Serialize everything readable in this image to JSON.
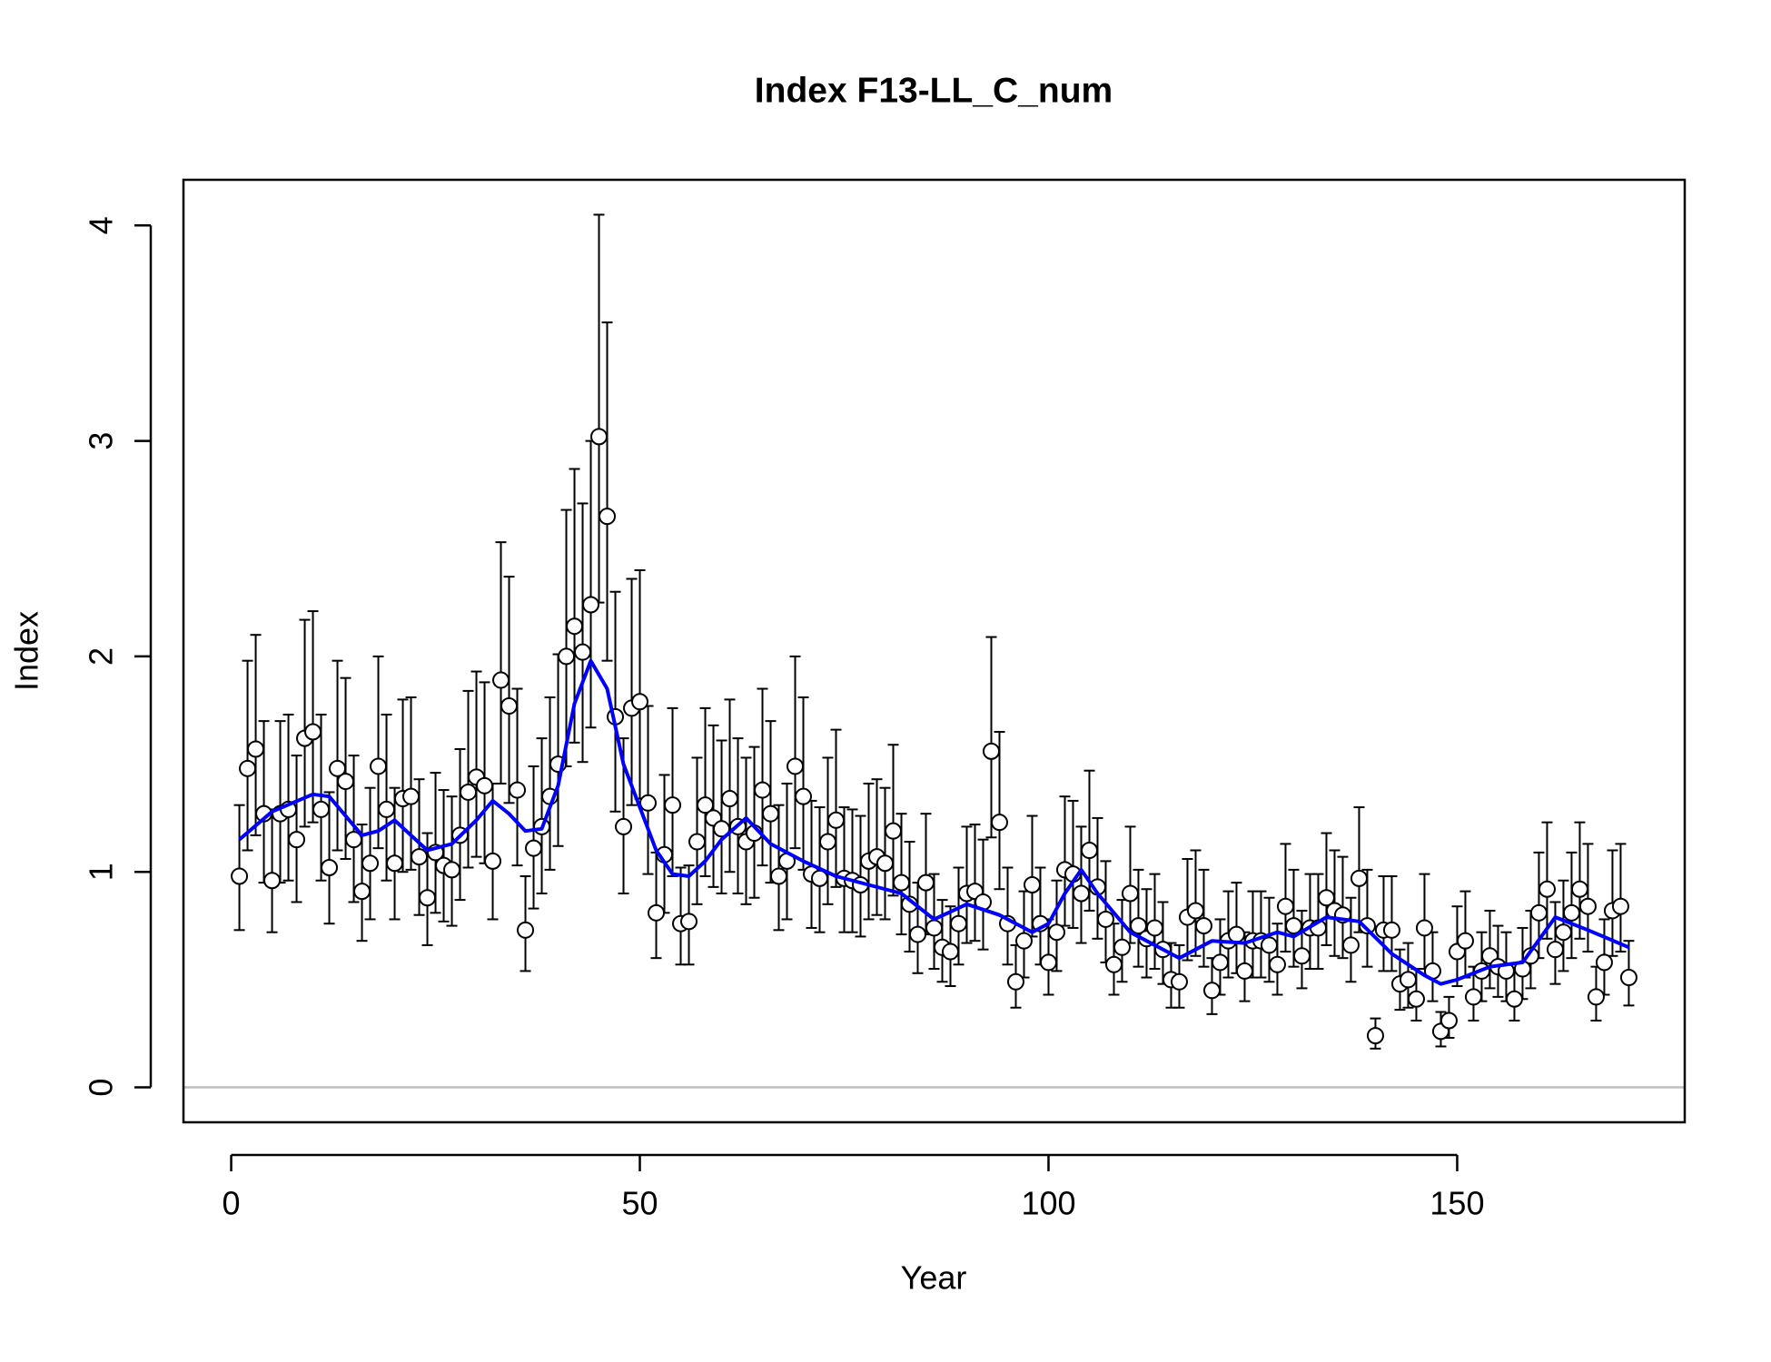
{
  "chart_data": {
    "type": "errorbar",
    "title": "Index F13-LL_C_num",
    "x_label": "Year",
    "y_label": "Index",
    "xlim": [
      -5.84,
      177.84
    ],
    "ylim": [
      -0.162,
      4.212
    ],
    "xticks": [
      0,
      50,
      100,
      150
    ],
    "yticks": [
      0,
      1,
      2,
      3,
      4
    ],
    "hline": {
      "value": 0,
      "color": "#bebebe"
    },
    "point_color": "#000000",
    "x": [
      1,
      2,
      3,
      4,
      5,
      6,
      7,
      8,
      9,
      10,
      11,
      12,
      13,
      14,
      15,
      16,
      17,
      18,
      19,
      20,
      21,
      22,
      23,
      24,
      25,
      26,
      27,
      28,
      29,
      30,
      31,
      32,
      33,
      34,
      35,
      36,
      37,
      38,
      39,
      40,
      41,
      42,
      43,
      44,
      45,
      46,
      47,
      48,
      49,
      50,
      51,
      52,
      53,
      54,
      55,
      56,
      57,
      58,
      59,
      60,
      61,
      62,
      63,
      64,
      65,
      66,
      67,
      68,
      69,
      70,
      71,
      72,
      73,
      74,
      75,
      76,
      77,
      78,
      79,
      80,
      81,
      82,
      83,
      84,
      85,
      86,
      87,
      88,
      89,
      90,
      91,
      92,
      93,
      94,
      95,
      96,
      97,
      98,
      99,
      100,
      101,
      102,
      103,
      104,
      105,
      106,
      107,
      108,
      109,
      110,
      111,
      112,
      113,
      114,
      115,
      116,
      117,
      118,
      119,
      120,
      121,
      122,
      123,
      124,
      125,
      126,
      127,
      128,
      129,
      130,
      131,
      132,
      133,
      134,
      135,
      136,
      137,
      138,
      139,
      140,
      141,
      142,
      143,
      144,
      145,
      146,
      147,
      148,
      149,
      150,
      151,
      152,
      153,
      154,
      155,
      156,
      157,
      158,
      159,
      160,
      161,
      162,
      163,
      164,
      165,
      166,
      167,
      168,
      169,
      170,
      171
    ],
    "values": [
      0.98,
      1.48,
      1.57,
      1.27,
      0.96,
      1.27,
      1.29,
      1.15,
      1.62,
      1.65,
      1.29,
      1.02,
      1.48,
      1.42,
      1.15,
      0.91,
      1.04,
      1.49,
      1.29,
      1.04,
      1.34,
      1.35,
      1.07,
      0.88,
      1.09,
      1.03,
      1.01,
      1.17,
      1.37,
      1.44,
      1.4,
      1.05,
      1.89,
      1.77,
      1.38,
      0.73,
      1.11,
      1.21,
      1.35,
      1.5,
      2.0,
      2.14,
      2.02,
      2.24,
      3.02,
      2.65,
      1.72,
      1.21,
      1.76,
      1.79,
      1.32,
      0.81,
      1.08,
      1.31,
      0.76,
      0.77,
      1.14,
      1.31,
      1.25,
      1.2,
      1.34,
      1.21,
      1.14,
      1.18,
      1.38,
      1.27,
      0.98,
      1.05,
      1.49,
      1.35,
      0.99,
      0.97,
      1.14,
      1.24,
      0.97,
      0.96,
      0.94,
      1.05,
      1.07,
      1.04,
      1.19,
      0.95,
      0.85,
      0.71,
      0.95,
      0.74,
      0.65,
      0.63,
      0.76,
      0.9,
      0.91,
      0.86,
      1.56,
      1.23,
      0.76,
      0.49,
      0.68,
      0.94,
      0.76,
      0.58,
      0.72,
      1.01,
      0.99,
      0.9,
      1.1,
      0.93,
      0.78,
      0.57,
      0.65,
      0.9,
      0.75,
      0.69,
      0.74,
      0.64,
      0.5,
      0.49,
      0.79,
      0.82,
      0.75,
      0.45,
      0.58,
      0.68,
      0.71,
      0.54,
      0.68,
      0.68,
      0.66,
      0.57,
      0.84,
      0.75,
      0.61,
      0.74,
      0.74,
      0.88,
      0.82,
      0.8,
      0.66,
      0.97,
      0.75,
      0.24,
      0.73,
      0.73,
      0.48,
      0.5,
      0.41,
      0.74,
      0.54,
      0.26,
      0.31,
      0.63,
      0.68,
      0.42,
      0.54,
      0.61,
      0.56,
      0.54,
      0.41,
      0.55,
      0.61,
      0.81,
      0.92,
      0.64,
      0.72,
      0.81,
      0.92,
      0.84,
      0.42,
      0.58,
      0.82,
      0.84,
      0.51
    ],
    "lower": [
      0.73,
      1.1,
      1.17,
      0.95,
      0.72,
      0.95,
      0.96,
      0.86,
      1.21,
      1.23,
      0.96,
      0.76,
      1.1,
      1.06,
      0.86,
      0.68,
      0.78,
      1.11,
      0.96,
      0.78,
      1.0,
      1.01,
      0.8,
      0.66,
      0.81,
      0.77,
      0.75,
      0.87,
      1.02,
      1.07,
      1.04,
      0.78,
      1.41,
      1.32,
      1.03,
      0.54,
      0.83,
      0.9,
      1.01,
      1.12,
      1.49,
      1.6,
      1.51,
      1.67,
      2.25,
      1.98,
      1.28,
      0.9,
      1.31,
      1.34,
      0.99,
      0.6,
      0.81,
      0.98,
      0.57,
      0.57,
      0.85,
      0.98,
      0.93,
      0.9,
      1.0,
      0.9,
      0.85,
      0.88,
      1.03,
      0.95,
      0.73,
      0.78,
      1.11,
      1.01,
      0.74,
      0.72,
      0.85,
      0.93,
      0.72,
      0.72,
      0.7,
      0.78,
      0.8,
      0.78,
      0.89,
      0.71,
      0.63,
      0.53,
      0.71,
      0.55,
      0.49,
      0.47,
      0.57,
      0.67,
      0.68,
      0.64,
      1.16,
      0.92,
      0.57,
      0.37,
      0.51,
      0.7,
      0.57,
      0.43,
      0.54,
      0.75,
      0.74,
      0.67,
      0.82,
      0.69,
      0.58,
      0.43,
      0.49,
      0.67,
      0.56,
      0.51,
      0.55,
      0.48,
      0.37,
      0.37,
      0.59,
      0.61,
      0.56,
      0.34,
      0.43,
      0.51,
      0.53,
      0.4,
      0.51,
      0.51,
      0.49,
      0.43,
      0.63,
      0.56,
      0.46,
      0.55,
      0.55,
      0.66,
      0.61,
      0.6,
      0.49,
      0.72,
      0.56,
      0.18,
      0.54,
      0.54,
      0.36,
      0.37,
      0.31,
      0.55,
      0.4,
      0.19,
      0.23,
      0.47,
      0.51,
      0.31,
      0.4,
      0.46,
      0.42,
      0.4,
      0.31,
      0.41,
      0.46,
      0.6,
      0.69,
      0.48,
      0.54,
      0.6,
      0.69,
      0.63,
      0.31,
      0.43,
      0.61,
      0.63,
      0.38
    ],
    "upper": [
      1.31,
      1.98,
      2.1,
      1.7,
      1.29,
      1.7,
      1.73,
      1.54,
      2.17,
      2.21,
      1.73,
      1.37,
      1.98,
      1.9,
      1.54,
      1.22,
      1.39,
      2.0,
      1.73,
      1.39,
      1.8,
      1.81,
      1.43,
      1.18,
      1.46,
      1.38,
      1.35,
      1.57,
      1.84,
      1.93,
      1.88,
      1.41,
      2.53,
      2.37,
      1.85,
      0.98,
      1.49,
      1.62,
      1.81,
      2.01,
      2.68,
      2.87,
      2.71,
      3.0,
      4.05,
      3.55,
      2.3,
      1.62,
      2.36,
      2.4,
      1.77,
      1.09,
      1.45,
      1.76,
      1.02,
      1.03,
      1.53,
      1.76,
      1.68,
      1.61,
      1.8,
      1.62,
      1.53,
      1.58,
      1.85,
      1.7,
      1.31,
      1.41,
      2.0,
      1.81,
      1.33,
      1.3,
      1.53,
      1.66,
      1.3,
      1.29,
      1.26,
      1.41,
      1.43,
      1.39,
      1.59,
      1.27,
      1.14,
      0.95,
      1.27,
      0.99,
      0.87,
      0.84,
      1.02,
      1.21,
      1.22,
      1.15,
      2.09,
      1.65,
      1.02,
      0.66,
      0.91,
      1.26,
      1.02,
      0.78,
      0.96,
      1.35,
      1.33,
      1.21,
      1.47,
      1.25,
      1.05,
      0.76,
      0.87,
      1.21,
      1.01,
      0.92,
      0.99,
      0.86,
      0.67,
      0.66,
      1.06,
      1.1,
      1.01,
      0.6,
      0.78,
      0.91,
      0.95,
      0.72,
      0.91,
      0.91,
      0.88,
      0.76,
      1.13,
      1.01,
      0.82,
      0.99,
      0.99,
      1.18,
      1.1,
      1.07,
      0.88,
      1.3,
      1.01,
      0.32,
      0.98,
      0.98,
      0.64,
      0.67,
      0.55,
      0.99,
      0.72,
      0.35,
      0.42,
      0.84,
      0.91,
      0.56,
      0.72,
      0.82,
      0.75,
      0.72,
      0.55,
      0.74,
      0.82,
      1.09,
      1.23,
      0.86,
      0.96,
      1.09,
      1.23,
      1.13,
      0.56,
      0.78,
      1.1,
      1.13,
      0.68
    ],
    "fit": {
      "color": "#0000ff",
      "x": [
        1,
        5,
        10,
        12,
        16,
        18,
        20,
        24,
        27,
        30,
        32,
        34,
        36,
        38,
        40,
        42,
        44,
        46,
        48,
        50,
        52,
        54,
        56,
        58,
        60,
        63,
        66,
        70,
        74,
        78,
        82,
        86,
        90,
        94,
        98,
        100,
        102,
        104,
        106,
        110,
        116,
        120,
        124,
        128,
        130,
        134,
        138,
        142,
        146,
        148,
        150,
        154,
        158,
        162,
        166,
        171
      ],
      "values": [
        1.15,
        1.28,
        1.36,
        1.35,
        1.17,
        1.19,
        1.24,
        1.1,
        1.13,
        1.24,
        1.33,
        1.27,
        1.19,
        1.2,
        1.4,
        1.78,
        1.98,
        1.85,
        1.5,
        1.3,
        1.1,
        0.99,
        0.98,
        1.05,
        1.15,
        1.25,
        1.13,
        1.05,
        0.98,
        0.94,
        0.9,
        0.78,
        0.85,
        0.8,
        0.72,
        0.76,
        0.9,
        1.01,
        0.9,
        0.72,
        0.6,
        0.68,
        0.67,
        0.72,
        0.7,
        0.79,
        0.77,
        0.62,
        0.52,
        0.48,
        0.5,
        0.56,
        0.58,
        0.79,
        0.73,
        0.65
      ]
    }
  }
}
